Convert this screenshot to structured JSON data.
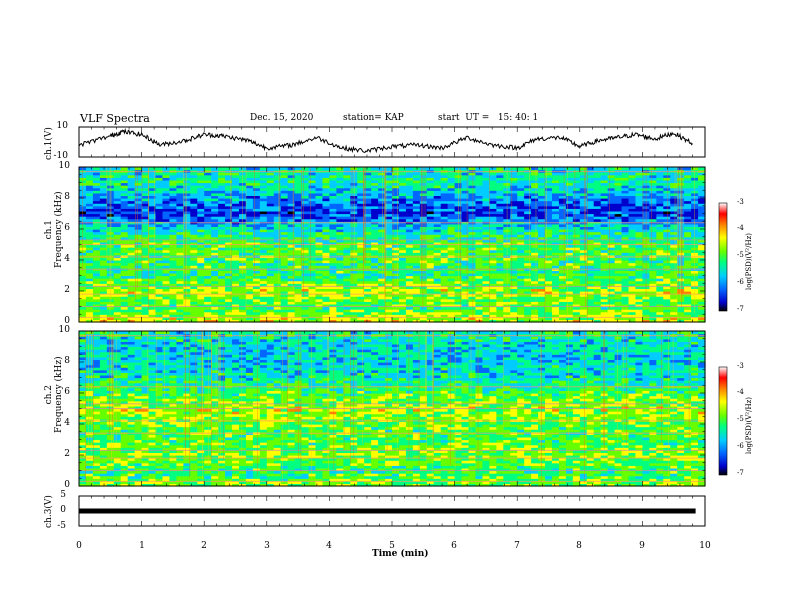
{
  "header": {
    "title": "VLF Spectra",
    "date": "Dec. 15, 2020",
    "station": "station= KAP",
    "start": "start  UT =   15: 40: 1"
  },
  "panels": {
    "ch1_wave": {
      "ylabel": "ch.1(V)",
      "ticks": [
        "10",
        "-10"
      ]
    },
    "ch1_spec": {
      "ylabel_a": "ch.1",
      "ylabel_b": "Frequency (kHz)",
      "ticks": [
        "10",
        "8",
        "6",
        "4",
        "2",
        "0"
      ]
    },
    "ch2_spec": {
      "ylabel_a": "ch.2",
      "ylabel_b": "Frequency (kHz)",
      "ticks": [
        "10",
        "8",
        "6",
        "4",
        "2",
        "0"
      ]
    },
    "ch3_wave": {
      "ylabel": "ch.3(V)",
      "ticks": [
        "5",
        "0",
        "-5"
      ]
    }
  },
  "colorbar": {
    "label": "log(PSD)(V²/Hz)",
    "ticks": [
      "-3",
      "-4",
      "-5",
      "-6",
      "-7"
    ],
    "colors": [
      "#000000",
      "#0000cc",
      "#0066ff",
      "#00ccff",
      "#00ff80",
      "#66ff00",
      "#ffff00",
      "#ff8000",
      "#ff0000",
      "#ffffff"
    ]
  },
  "xaxis": {
    "label": "Time (min)",
    "ticks": [
      "0",
      "1",
      "2",
      "3",
      "4",
      "5",
      "6",
      "7",
      "8",
      "9",
      "10"
    ]
  },
  "chart_data": [
    {
      "type": "line",
      "name": "ch.1 waveform",
      "ylabel": "ch.1(V)",
      "ylim": [
        -10,
        10
      ],
      "xlim": [
        0,
        10
      ],
      "x": [
        0,
        0.5,
        0.7,
        1.0,
        1.3,
        1.7,
        2.0,
        2.3,
        2.7,
        3.0,
        3.4,
        3.8,
        4.2,
        4.6,
        5.0,
        5.4,
        5.8,
        6.2,
        6.6,
        7.0,
        7.3,
        7.7,
        8.0,
        8.3,
        8.6,
        8.9,
        9.2,
        9.5,
        9.8
      ],
      "y": [
        -2,
        4,
        7,
        5,
        -2,
        1,
        5,
        4,
        1,
        -4,
        -2,
        3,
        -4,
        -6,
        -3,
        -2,
        -4,
        3,
        -2,
        -4,
        2,
        3,
        -3,
        1,
        3,
        5,
        2,
        6,
        -1
      ]
    },
    {
      "type": "heatmap",
      "name": "ch.1 spectrogram",
      "ylabel": "Frequency (kHz)",
      "xlim": [
        0,
        10
      ],
      "ylim": [
        0,
        10
      ],
      "colorbar_range": [
        -7,
        -3
      ],
      "freq_kHz": [
        0,
        1,
        2,
        3,
        4,
        5,
        6,
        7,
        8,
        9,
        10
      ],
      "typical_log_psd": [
        -4.5,
        -5.0,
        -4.6,
        -5.1,
        -5.0,
        -5.0,
        -5.4,
        -6.2,
        -5.8,
        -5.3,
        -5.4
      ]
    },
    {
      "type": "heatmap",
      "name": "ch.2 spectrogram",
      "ylabel": "Frequency (kHz)",
      "xlim": [
        0,
        10
      ],
      "ylim": [
        0,
        10
      ],
      "colorbar_range": [
        -7,
        -3
      ],
      "freq_kHz": [
        0,
        1,
        2,
        3,
        4,
        5,
        6,
        7,
        8,
        9,
        10
      ],
      "typical_log_psd": [
        -4.8,
        -5.1,
        -4.7,
        -5.0,
        -4.9,
        -4.6,
        -5.0,
        -5.4,
        -5.5,
        -5.5,
        -5.3
      ]
    },
    {
      "type": "line",
      "name": "ch.3 waveform",
      "ylabel": "ch.3(V)",
      "ylim": [
        -5,
        5
      ],
      "xlim": [
        0,
        10
      ],
      "x": [
        0,
        9.85
      ],
      "y": [
        0,
        0
      ]
    }
  ]
}
